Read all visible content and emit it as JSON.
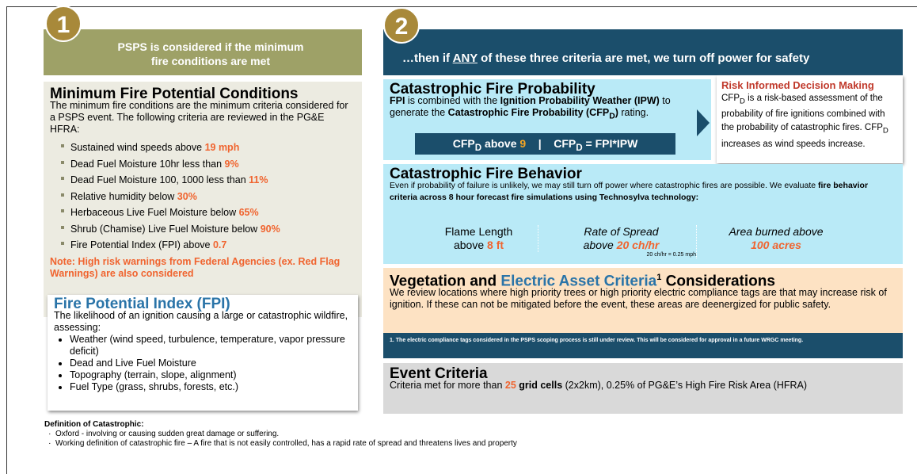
{
  "left": {
    "badge": "1",
    "banner": "PSPS is considered if the minimum fire conditions are met",
    "min_conditions": {
      "title": "Minimum Fire Potential Conditions",
      "intro": "The minimum fire conditions are the minimum criteria considered for a PSPS event.  The following criteria are reviewed in the PG&E HFRA:",
      "criteria": [
        {
          "text": "Sustained wind speeds above ",
          "value": "19 mph"
        },
        {
          "text": "Dead Fuel Moisture 10hr less than ",
          "value": "9%"
        },
        {
          "text": "Dead Fuel Moisture 100, 1000 less than ",
          "value": "11%"
        },
        {
          "text": "Relative humidity below ",
          "value": "30%"
        },
        {
          "text": "Herbaceous Live Fuel Moisture below ",
          "value": "65%"
        },
        {
          "text": "Shrub (Chamise) Live Fuel Moisture below ",
          "value": "90%"
        },
        {
          "text": "Fire Potential Index (FPI) above ",
          "value": "0.7"
        }
      ],
      "note": "Note: High risk warnings from Federal Agencies (ex. Red Flag Warnings) are also considered"
    },
    "fpi": {
      "title": "Fire Potential Index (FPI)",
      "intro": "The likelihood of an ignition causing a large or catastrophic wildfire, assessing:",
      "items": [
        "Weather (wind speed, turbulence, temperature, vapor pressure deficit)",
        "Dead and Live Fuel Moisture",
        "Topography (terrain, slope, alignment)",
        "Fuel Type (grass, shrubs, forests, etc.)"
      ]
    },
    "definition": {
      "title": "Definition of Catastrophic:",
      "items": [
        "Oxford - involving or causing sudden great damage or suffering.",
        "Working definition of catastrophic fire – A fire that is not easily controlled, has a rapid rate of spread and threatens lives and property"
      ]
    }
  },
  "right": {
    "badge": "2",
    "banner": [
      "…then if ",
      "ANY",
      " of these three criteria are met, we turn off power for safety"
    ],
    "cfp": {
      "title": "Catastrophic Fire Probability",
      "body": [
        "FPI",
        " is combined with the ",
        "Ignition Probability Weather (IPW)",
        " to generate the ",
        "Catastrophic Fire Probability (CFP",
        "D",
        ")",
        " rating."
      ],
      "formula": [
        "CFP",
        "D",
        " above ",
        "9",
        "|",
        "CFP",
        "D",
        " = FPI*IPW"
      ]
    },
    "risk": {
      "title": "Risk Informed Decision Making",
      "body": [
        "CFP",
        "D",
        " is a risk-based assessment of the probability of fire ignitions combined with the probability of catastrophic fires.  CFP",
        "D",
        " increases as wind speeds increase."
      ]
    },
    "behavior": {
      "title": "Catastrophic Fire Behavior",
      "body": [
        "Even if probability of failure is unlikely, we may still turn off power where catastrophic fires are possible. We evaluate ",
        "fire behavior criteria across 8 hour forecast fire simulations using Technosylva technology:"
      ],
      "metrics": [
        {
          "label": "Flame Length",
          "prefix": "above ",
          "value": "8 ft"
        },
        {
          "label": "Rate of Spread",
          "prefix": "above ",
          "value": "20 ch/hr",
          "note": "20 ch/hr = 0.25 mph"
        },
        {
          "label": "Area burned above",
          "value": "100 acres"
        }
      ]
    },
    "vegetation": {
      "title": [
        "Vegetation and ",
        "Electric Asset Criteria",
        "1",
        " Considerations"
      ],
      "body": "We review locations where high priority trees or high priority electric compliance tags are that may increase risk of ignition.  If these can not be mitigated before the event, these areas are deenergized for public safety.",
      "footnote": "1. The electric compliance tags considered in the PSPS scoping process is still under review. This will be considered for approval in a future WRGC meeting."
    },
    "event": {
      "title": "Event Criteria",
      "body": [
        "Criteria met for more than ",
        "25",
        " grid cells",
        " (2x2km), 0.25% of PG&E’s High Fire Risk Area (HFRA)"
      ]
    }
  }
}
